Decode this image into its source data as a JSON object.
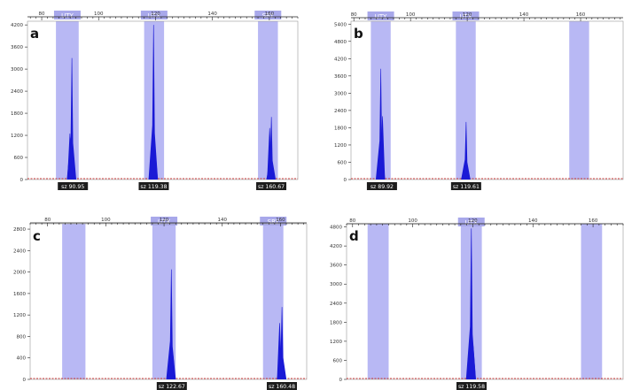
{
  "chart_data": [
    {
      "type": "area",
      "panel_label": "a",
      "x_ticks": [
        80,
        100,
        120,
        140,
        160
      ],
      "y_ticks": [
        0,
        600,
        1200,
        1800,
        2400,
        3000,
        3600,
        4200
      ],
      "xlim": [
        75,
        170
      ],
      "ylim": [
        0,
        4300
      ],
      "bins": [
        {
          "label": "UTY",
          "from": 85,
          "to": 93
        },
        {
          "label": "UTX",
          "from": 116,
          "to": 123
        },
        {
          "label": "SRY",
          "from": 156,
          "to": 163
        }
      ],
      "peaks": [
        {
          "x": 90.6,
          "height": 3300,
          "sub": {
            "dx": -0.7,
            "height": 1250
          }
        },
        {
          "x": 119.3,
          "height": 4200,
          "sub": {
            "dx": 0.6,
            "height": 800
          }
        },
        {
          "x": 160.7,
          "height": 1700,
          "sub": {
            "dx": -0.6,
            "height": 1400
          }
        }
      ],
      "size_labels": [
        {
          "x": 90.95,
          "text": "sz 90.95"
        },
        {
          "x": 119.38,
          "text": "sz 119.38"
        },
        {
          "x": 160.67,
          "text": "sz 160.67"
        }
      ]
    },
    {
      "type": "area",
      "panel_label": "b",
      "x_ticks": [
        80,
        100,
        120,
        140,
        160
      ],
      "y_ticks": [
        0,
        600,
        1200,
        1800,
        2400,
        3000,
        3600,
        4200,
        4800,
        5400
      ],
      "xlim": [
        79,
        175
      ],
      "ylim": [
        0,
        5500
      ],
      "bins": [
        {
          "label": "UTY",
          "from": 86,
          "to": 93
        },
        {
          "label": "UTX",
          "from": 116,
          "to": 123
        },
        {
          "label": "",
          "from": 156,
          "to": 163
        }
      ],
      "peaks": [
        {
          "x": 89.5,
          "height": 3850,
          "sub": {
            "dx": 0.6,
            "height": 2200
          }
        },
        {
          "x": 119.6,
          "height": 2000,
          "sub": null
        }
      ],
      "size_labels": [
        {
          "x": 89.92,
          "text": "sz 89.92"
        },
        {
          "x": 119.61,
          "text": "sz 119.61"
        }
      ]
    },
    {
      "type": "area",
      "panel_label": "c",
      "x_ticks": [
        80,
        100,
        120,
        140,
        160
      ],
      "y_ticks": [
        0,
        400,
        800,
        1200,
        1600,
        2000,
        2400,
        2800
      ],
      "xlim": [
        74,
        169
      ],
      "ylim": [
        0,
        2900
      ],
      "bins": [
        {
          "label": "",
          "from": 85,
          "to": 93
        },
        {
          "label": "UTX",
          "from": 116,
          "to": 124
        },
        {
          "label": "SRY",
          "from": 154,
          "to": 161
        }
      ],
      "peaks": [
        {
          "x": 122.5,
          "height": 2050,
          "sub": {
            "dx": 0.5,
            "height": 500
          }
        },
        {
          "x": 160.5,
          "height": 1350,
          "sub": {
            "dx": -0.8,
            "height": 1050
          }
        }
      ],
      "size_labels": [
        {
          "x": 122.67,
          "text": "sz 122.67"
        },
        {
          "x": 160.48,
          "text": "sz 160.48"
        }
      ]
    },
    {
      "type": "area",
      "panel_label": "d",
      "x_ticks": [
        80,
        100,
        120,
        140,
        160
      ],
      "y_ticks": [
        0,
        600,
        1200,
        1800,
        2400,
        3000,
        3600,
        4200,
        4800
      ],
      "xlim": [
        78,
        170
      ],
      "ylim": [
        0,
        4900
      ],
      "bins": [
        {
          "label": "",
          "from": 85,
          "to": 92
        },
        {
          "label": "UTX",
          "from": 116,
          "to": 123
        },
        {
          "label": "",
          "from": 156,
          "to": 163
        }
      ],
      "peaks": [
        {
          "x": 119.5,
          "height": 4750,
          "sub": {
            "dx": 0.6,
            "height": 1050
          }
        }
      ],
      "size_labels": [
        {
          "x": 119.58,
          "text": "sz 119.58"
        }
      ]
    }
  ],
  "colors": {
    "bin_fill": "#b8b8f4",
    "bin_label_fill": "#a8a8ea",
    "peak_fill": "#1a1ad6",
    "baseline": "#d04040",
    "size_label_bg": "#1c1c1c",
    "size_label_text": "#ffffff",
    "axis": "#222222"
  }
}
